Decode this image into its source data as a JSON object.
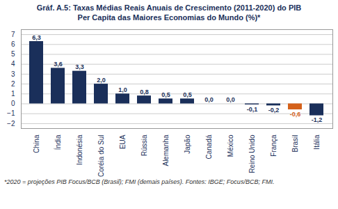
{
  "chart_data": {
    "type": "bar",
    "title": "Gráf. A.5: Taxas Médias Reais Anuais de Crescimento (2011-2020) do PIB",
    "subtitle": "Per Capita das Maiores Economias do Mundo (%)*",
    "caption": "*2020 = projeções PIB Focus/BCB (Brasil); FMI (demais países). Fontes: IBGE; Focus/BCB; FMI.",
    "categories": [
      "China",
      "Índia",
      "Indonésia",
      "Coréia do Sul",
      "EUA",
      "Rússia",
      "Alemanha",
      "Japão",
      "Canadá",
      "México",
      "Reino Unido",
      "França",
      "Brasil",
      "Itália"
    ],
    "values": [
      6.3,
      3.6,
      3.3,
      2.0,
      1.0,
      0.8,
      0.5,
      0.5,
      0.0,
      0.0,
      -0.1,
      -0.2,
      -0.6,
      -1.2
    ],
    "value_labels": [
      "6,3",
      "3,6",
      "3,3",
      "2,0",
      "1,0",
      "0,8",
      "0,5",
      "0,5",
      "0,0",
      "0,0",
      "-0,1",
      "-0,2",
      "-0,6",
      "-1,2"
    ],
    "colors": [
      "#1a2f5a",
      "#1a2f5a",
      "#1a2f5a",
      "#1a2f5a",
      "#1a2f5a",
      "#1a2f5a",
      "#1a2f5a",
      "#1a2f5a",
      "#1a2f5a",
      "#1a2f5a",
      "#1a2f5a",
      "#1a2f5a",
      "#d4611a",
      "#1a2f5a"
    ],
    "data_labels": true,
    "ylim": [
      -2.5,
      7.5
    ],
    "yticks": [
      -2,
      -1,
      0,
      1,
      2,
      3,
      4,
      5,
      6,
      7
    ],
    "grid": true
  }
}
